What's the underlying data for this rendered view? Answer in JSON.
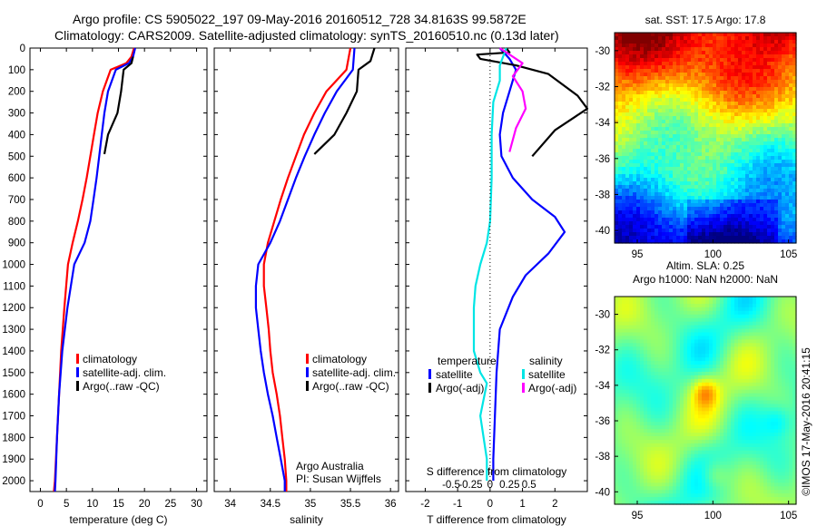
{
  "title": {
    "line1": "Argo profile: CS 5905022_197 09-May-2016 20160512_728 34.8163S 99.5872E",
    "line2": "Climatology: CARS2009. Satellite-adjusted climatology: synTS_20160510.nc (0.13d later)"
  },
  "stamp": "©IMOS 17-May-2016 20:41:15",
  "colors": {
    "clim": "#ff0000",
    "sat": "#0000ff",
    "argo": "#000000",
    "sat_sal": "#00e5e5",
    "argo_sal": "#ff00ff"
  },
  "chart_data": [
    {
      "type": "line",
      "id": "temperature",
      "xlabel": "temperature (deg C)",
      "xlim": [
        -2,
        32
      ],
      "ylim": [
        0,
        2050
      ],
      "xticks": [
        0,
        5,
        10,
        15,
        20,
        25,
        30
      ],
      "yticks": [
        0,
        100,
        200,
        300,
        400,
        500,
        600,
        700,
        800,
        900,
        1000,
        1100,
        1200,
        1300,
        1400,
        1500,
        1600,
        1700,
        1800,
        1900,
        2000
      ],
      "legend": [
        "climatology",
        "satellite-adj. clim.",
        "Argo(..raw -QC)"
      ],
      "series": [
        {
          "name": "climatology",
          "color": "clim",
          "points": [
            [
              18,
              0
            ],
            [
              17.5,
              40
            ],
            [
              16.5,
              70
            ],
            [
              13.5,
              100
            ],
            [
              12,
              200
            ],
            [
              11,
              300
            ],
            [
              10.3,
              400
            ],
            [
              9.6,
              500
            ],
            [
              8.9,
              600
            ],
            [
              8.1,
              700
            ],
            [
              7.2,
              800
            ],
            [
              6.2,
              900
            ],
            [
              5.3,
              1000
            ],
            [
              4.6,
              1200
            ],
            [
              4.0,
              1400
            ],
            [
              3.6,
              1600
            ],
            [
              3.2,
              1800
            ],
            [
              2.8,
              2000
            ],
            [
              2.6,
              2050
            ]
          ]
        },
        {
          "name": "satellite-adj. clim.",
          "color": "sat",
          "points": [
            [
              18.2,
              0
            ],
            [
              17.8,
              40
            ],
            [
              17,
              70
            ],
            [
              14.5,
              100
            ],
            [
              13,
              200
            ],
            [
              12.3,
              300
            ],
            [
              11.8,
              400
            ],
            [
              11.3,
              500
            ],
            [
              10.8,
              600
            ],
            [
              10.2,
              700
            ],
            [
              9.6,
              800
            ],
            [
              8.5,
              900
            ],
            [
              6.5,
              1000
            ],
            [
              5.2,
              1200
            ],
            [
              4.2,
              1400
            ],
            [
              3.6,
              1600
            ],
            [
              3.2,
              1800
            ],
            [
              2.9,
              2000
            ],
            [
              2.8,
              2050
            ]
          ]
        },
        {
          "name": "Argo(..raw -QC)",
          "color": "argo",
          "points": [
            [
              17.8,
              40
            ],
            [
              17.5,
              70
            ],
            [
              16,
              100
            ],
            [
              15.5,
              200
            ],
            [
              14.8,
              300
            ],
            [
              13,
              400
            ],
            [
              12.3,
              490
            ]
          ]
        }
      ]
    },
    {
      "type": "line",
      "id": "salinity",
      "xlabel": "salinity",
      "xlim": [
        33.8,
        36.1
      ],
      "ylim": [
        0,
        2050
      ],
      "xticks": [
        34,
        34.5,
        35,
        35.5,
        36
      ],
      "legend": [
        "climatology",
        "satellite-adj. clim."
      ],
      "annotation": [
        "Argo Australia",
        "PI: Susan Wijffels"
      ],
      "series": [
        {
          "name": "climatology",
          "color": "clim",
          "points": [
            [
              35.5,
              0
            ],
            [
              35.45,
              100
            ],
            [
              35.2,
              200
            ],
            [
              35.05,
              300
            ],
            [
              34.92,
              400
            ],
            [
              34.82,
              500
            ],
            [
              34.72,
              600
            ],
            [
              34.63,
              700
            ],
            [
              34.55,
              800
            ],
            [
              34.47,
              900
            ],
            [
              34.42,
              1000
            ],
            [
              34.42,
              1100
            ],
            [
              34.45,
              1200
            ],
            [
              34.48,
              1300
            ],
            [
              34.5,
              1400
            ],
            [
              34.53,
              1500
            ],
            [
              34.58,
              1600
            ],
            [
              34.62,
              1700
            ],
            [
              34.65,
              1800
            ],
            [
              34.68,
              1900
            ],
            [
              34.7,
              2000
            ],
            [
              34.7,
              2050
            ]
          ]
        },
        {
          "name": "satellite-adj. clim.",
          "color": "sat",
          "points": [
            [
              35.55,
              0
            ],
            [
              35.53,
              100
            ],
            [
              35.33,
              200
            ],
            [
              35.18,
              300
            ],
            [
              35.05,
              400
            ],
            [
              34.93,
              500
            ],
            [
              34.82,
              600
            ],
            [
              34.72,
              700
            ],
            [
              34.62,
              800
            ],
            [
              34.5,
              900
            ],
            [
              34.35,
              1000
            ],
            [
              34.32,
              1100
            ],
            [
              34.32,
              1200
            ],
            [
              34.35,
              1300
            ],
            [
              34.38,
              1400
            ],
            [
              34.42,
              1500
            ],
            [
              34.47,
              1600
            ],
            [
              34.53,
              1700
            ],
            [
              34.58,
              1800
            ],
            [
              34.63,
              1900
            ],
            [
              34.68,
              2000
            ],
            [
              34.68,
              2050
            ]
          ]
        },
        {
          "name": "Argo(..raw -QC)",
          "color": "argo",
          "points": [
            [
              35.8,
              0
            ],
            [
              35.75,
              60
            ],
            [
              35.6,
              100
            ],
            [
              35.58,
              200
            ],
            [
              35.45,
              300
            ],
            [
              35.3,
              400
            ],
            [
              35.05,
              490
            ]
          ]
        }
      ]
    },
    {
      "type": "line",
      "id": "difference",
      "xlabel": "T difference from climatology",
      "xlabel2": "S difference from climatology",
      "xlim": [
        -2.6,
        3
      ],
      "ylim": [
        0,
        2050
      ],
      "xticks": [
        -2,
        -1,
        0,
        1,
        2
      ],
      "xticks_s": [
        "-0.5",
        "-0.25",
        "0",
        "0.25",
        "0.5"
      ],
      "legend_headers": [
        "temperature",
        "salinity"
      ],
      "legend": [
        "satellite",
        "Argo(-adj)",
        "satellite",
        "Argo(-adj)"
      ],
      "series": [
        {
          "name": "satellite",
          "color": "sat",
          "points": [
            [
              0.3,
              0
            ],
            [
              0.6,
              50
            ],
            [
              0.8,
              100
            ],
            [
              0.6,
              200
            ],
            [
              0.4,
              300
            ],
            [
              0.3,
              400
            ],
            [
              0.35,
              500
            ],
            [
              0.7,
              600
            ],
            [
              1.3,
              700
            ],
            [
              2,
              780
            ],
            [
              2.3,
              850
            ],
            [
              1.8,
              950
            ],
            [
              1.1,
              1050
            ],
            [
              0.7,
              1150
            ],
            [
              0.3,
              1300
            ],
            [
              0.2,
              1500
            ],
            [
              0.15,
              1700
            ],
            [
              0.1,
              1900
            ],
            [
              0.1,
              2000
            ]
          ]
        },
        {
          "name": "Argo(-adj)",
          "color": "argo",
          "points": [
            [
              0.5,
              0
            ],
            [
              0.6,
              20
            ],
            [
              -0.4,
              30
            ],
            [
              -0.3,
              50
            ],
            [
              0.8,
              80
            ],
            [
              1.8,
              120
            ],
            [
              2.7,
              220
            ],
            [
              3,
              280
            ],
            [
              2,
              380
            ],
            [
              1.3,
              500
            ]
          ]
        },
        {
          "name": "satellite",
          "color": "sat_sal",
          "points": [
            [
              0.5,
              0
            ],
            [
              0.3,
              80
            ],
            [
              0.3,
              150
            ],
            [
              0.1,
              250
            ],
            [
              0.05,
              400
            ],
            [
              0.05,
              600
            ],
            [
              0,
              800
            ],
            [
              -0.1,
              900
            ],
            [
              -0.3,
              1000
            ],
            [
              -0.45,
              1100
            ],
            [
              -0.5,
              1200
            ],
            [
              -0.5,
              1400
            ],
            [
              -0.3,
              1500
            ],
            [
              -0.1,
              1550
            ],
            [
              -0.3,
              1700
            ],
            [
              -0.1,
              1900
            ],
            [
              -0.1,
              2000
            ]
          ]
        },
        {
          "name": "Argo(-adj)",
          "color": "argo_sal",
          "points": [
            [
              0.3,
              0
            ],
            [
              1,
              70
            ],
            [
              0.7,
              130
            ],
            [
              1,
              200
            ],
            [
              1.1,
              280
            ],
            [
              0.8,
              370
            ],
            [
              0.6,
              480
            ]
          ]
        }
      ]
    },
    {
      "type": "heatmap",
      "id": "sst",
      "title": "sat. SST: 17.5 Argo: 17.8",
      "xlim": [
        93.5,
        105.5
      ],
      "ylim": [
        -40.7,
        -29
      ],
      "xticks": [
        95,
        100,
        105
      ],
      "yticks": [
        -30,
        -32,
        -34,
        -36,
        -38,
        -40
      ],
      "colorscale": "jet"
    },
    {
      "type": "heatmap",
      "id": "sla",
      "title": "Altim. SLA: 0.25",
      "subtitle": "Argo h1000: NaN h2000: NaN",
      "xlim": [
        93.5,
        105.5
      ],
      "ylim": [
        -40.7,
        -29
      ],
      "xticks": [
        95,
        100,
        105
      ],
      "yticks": [
        -30,
        -32,
        -34,
        -36,
        -38,
        -40
      ],
      "colorscale": "jet"
    }
  ]
}
